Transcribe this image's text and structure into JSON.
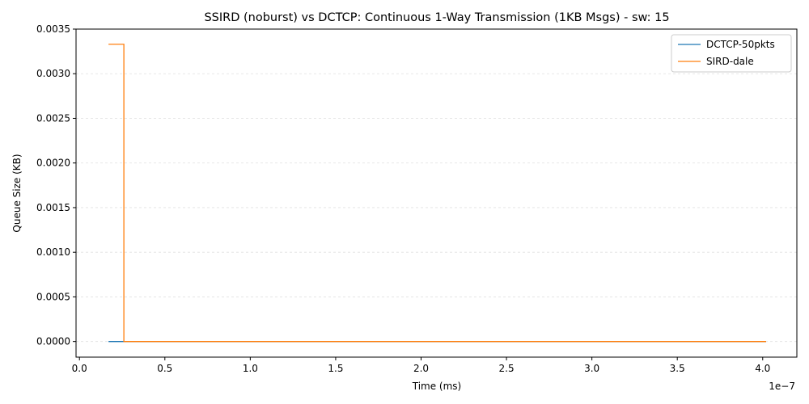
{
  "chart_data": {
    "type": "line",
    "title": "SSIRD (noburst) vs DCTCP: Continuous 1-Way Transmission (1KB Msgs) - sw: 15",
    "xlabel": "Time (ms)",
    "ylabel": "Queue Size (KB)",
    "x_offset_label": "1e−7",
    "xlim": [
      -0.02,
      4.2
    ],
    "ylim": [
      -0.000175,
      0.0035
    ],
    "x_ticks": [
      0.0,
      0.5,
      1.0,
      1.5,
      2.0,
      2.5,
      3.0,
      3.5,
      4.0
    ],
    "x_tick_labels": [
      "0.0",
      "0.5",
      "1.0",
      "1.5",
      "2.0",
      "2.5",
      "3.0",
      "3.5",
      "4.0"
    ],
    "y_ticks": [
      0.0,
      0.0005,
      0.001,
      0.0015,
      0.002,
      0.0025,
      0.003,
      0.0035
    ],
    "y_tick_labels": [
      "0.0000",
      "0.0005",
      "0.0010",
      "0.0015",
      "0.0020",
      "0.0025",
      "0.0030",
      "0.0035"
    ],
    "grid": "horizontal",
    "legend_position": "top-right",
    "series": [
      {
        "name": "DCTCP-50pkts",
        "color": "#1f77b4",
        "x": [
          0.17,
          0.26,
          4.02
        ],
        "y": [
          0.0,
          0.0,
          0.0
        ]
      },
      {
        "name": "SIRD-dale",
        "color": "#ff7f0e",
        "x": [
          0.17,
          0.25,
          0.26,
          0.26,
          4.02
        ],
        "y": [
          0.00333,
          0.00333,
          0.00333,
          0.0,
          0.0
        ]
      }
    ]
  }
}
